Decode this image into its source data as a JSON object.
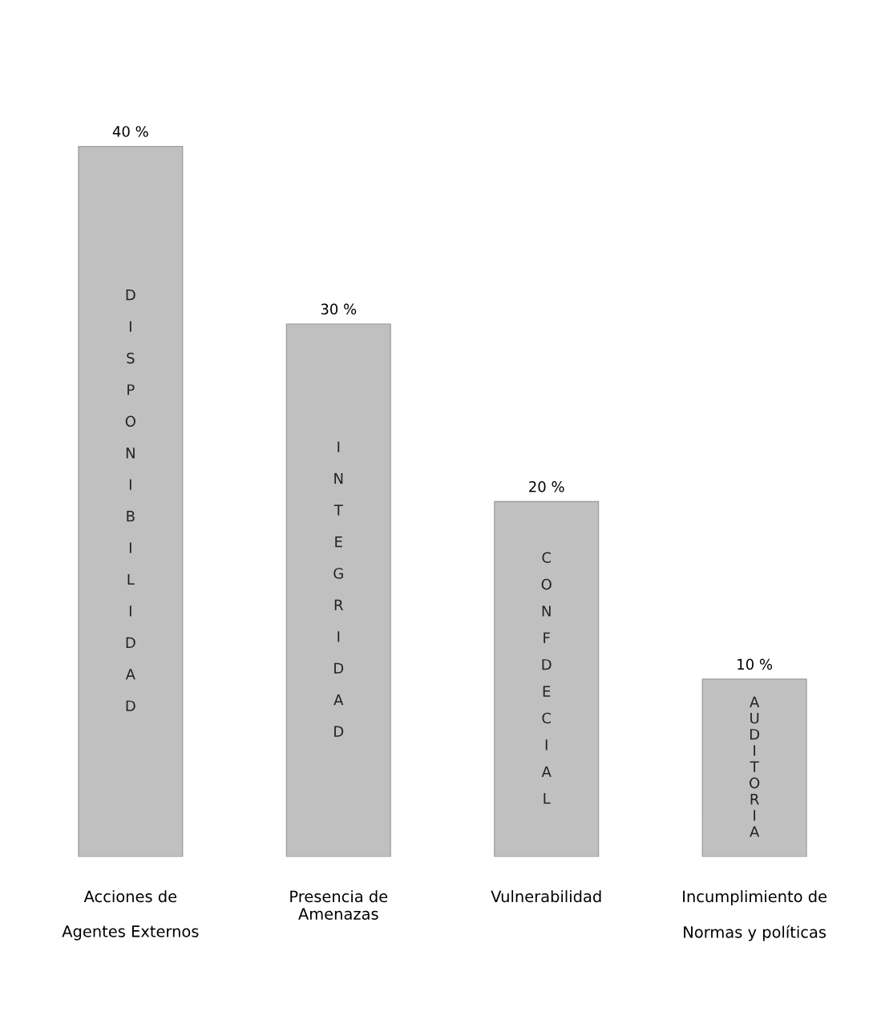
{
  "chart_data": {
    "type": "bar",
    "categories": [
      "Acciones de\n\nAgentes Externos",
      "Presencia de\nAmenazas",
      "Vulnerabilidad",
      "Incumplimiento de\n\nNormas y políticas"
    ],
    "values": [
      40,
      30,
      20,
      10
    ],
    "value_labels": [
      "40 %",
      "30 %",
      "20 %",
      "10 %"
    ],
    "color": "#c0c0c0",
    "annotations": [
      "DISPONIBILIDAD",
      "INTEGRIDAD",
      "CONFDECIAL",
      "AUDITORIA"
    ],
    "grid": false,
    "legend": false
  }
}
